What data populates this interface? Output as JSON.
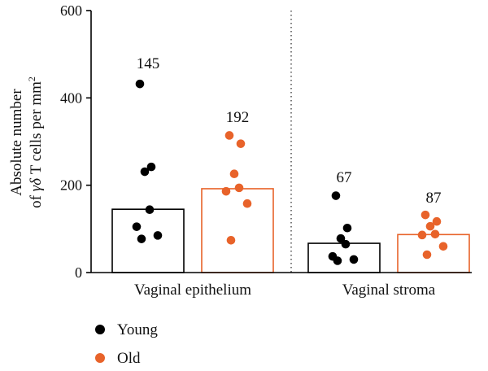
{
  "chart_data": {
    "type": "bar",
    "ylabel_line1": "Absolute number",
    "ylabel_line2_prefix": "of ",
    "ylabel_greek": "γδ",
    "ylabel_line2_mid": " T cells per mm",
    "ylabel_sup": "2",
    "ylim": [
      0,
      600
    ],
    "yticks": [
      "0",
      "200",
      "400",
      "600"
    ],
    "groups": [
      "Vaginal epithelium",
      "Vaginal stroma"
    ],
    "series": [
      {
        "name": "Young",
        "color": "#000000",
        "bar_fill": "#ffffff",
        "bar_values": [
          145,
          67
        ],
        "bar_labels": [
          "145",
          "67"
        ],
        "points": [
          [
            432,
            242,
            231,
            144,
            105,
            85,
            77
          ],
          [
            176,
            102,
            78,
            65,
            37,
            30,
            27
          ]
        ]
      },
      {
        "name": "Old",
        "color": "#e8632a",
        "bar_fill": "#ffffff",
        "bar_values": [
          192,
          87
        ],
        "bar_labels": [
          "192",
          "87"
        ],
        "points": [
          [
            314,
            295,
            226,
            194,
            186,
            158,
            74
          ],
          [
            132,
            117,
            106,
            88,
            86,
            60,
            41
          ]
        ]
      }
    ],
    "legend_position": "bottom-left",
    "divider": "dotted"
  }
}
